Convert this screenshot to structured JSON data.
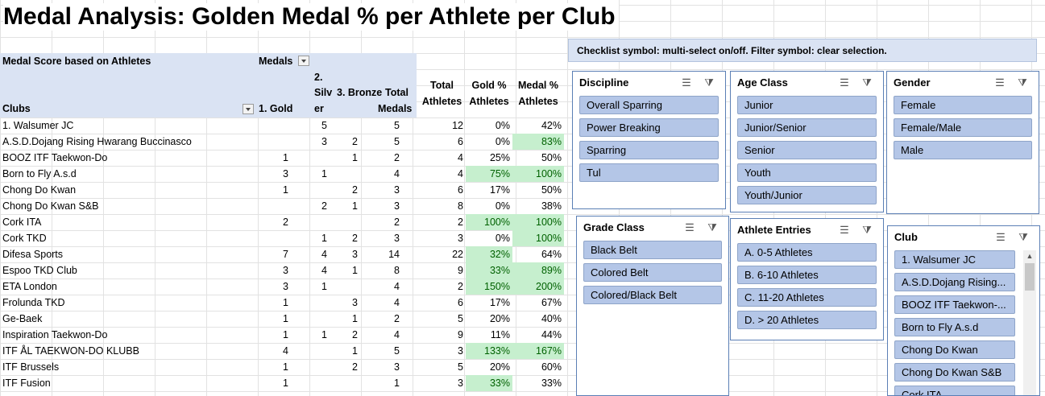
{
  "title": "Medal Analysis: Golden Medal % per Athlete per Club",
  "pivot": {
    "header_title": "Medal Score based on Athletes",
    "medals_label": "Medals",
    "col_clubs": "Clubs",
    "col_gold": "1. Gold",
    "col_silver_1": "2.",
    "col_silver_2": "Silv",
    "col_silver_3": "er",
    "col_bronze": "3. Bronze",
    "col_total_1": "Total",
    "col_total_2": "Medals",
    "rows": [
      {
        "club": "1. Walsumer JC",
        "gold": "",
        "silver": "5",
        "bronze": "",
        "total": "5"
      },
      {
        "club": "A.S.D.Dojang Rising Hwarang Buccinasco",
        "gold": "",
        "silver": "3",
        "bronze": "2",
        "total": "5"
      },
      {
        "club": "BOOZ ITF Taekwon-Do",
        "gold": "1",
        "silver": "",
        "bronze": "1",
        "total": "2"
      },
      {
        "club": "Born to Fly A.s.d",
        "gold": "3",
        "silver": "1",
        "bronze": "",
        "total": "4"
      },
      {
        "club": "Chong Do Kwan",
        "gold": "1",
        "silver": "",
        "bronze": "2",
        "total": "3"
      },
      {
        "club": "Chong Do Kwan S&B",
        "gold": "",
        "silver": "2",
        "bronze": "1",
        "total": "3"
      },
      {
        "club": "Cork ITA",
        "gold": "2",
        "silver": "",
        "bronze": "",
        "total": "2"
      },
      {
        "club": "Cork TKD",
        "gold": "",
        "silver": "1",
        "bronze": "2",
        "total": "3"
      },
      {
        "club": "Difesa Sports",
        "gold": "7",
        "silver": "4",
        "bronze": "3",
        "total": "14"
      },
      {
        "club": "Espoo TKD Club",
        "gold": "3",
        "silver": "4",
        "bronze": "1",
        "total": "8"
      },
      {
        "club": "ETA London",
        "gold": "3",
        "silver": "1",
        "bronze": "",
        "total": "4"
      },
      {
        "club": "Frolunda TKD",
        "gold": "1",
        "silver": "",
        "bronze": "3",
        "total": "4"
      },
      {
        "club": "Ge-Baek",
        "gold": "1",
        "silver": "",
        "bronze": "1",
        "total": "2"
      },
      {
        "club": "Inspiration Taekwon-Do",
        "gold": "1",
        "silver": "1",
        "bronze": "2",
        "total": "4"
      },
      {
        "club": "ITF ÅL TAEKWON-DO KLUBB",
        "gold": "4",
        "silver": "",
        "bronze": "1",
        "total": "5"
      },
      {
        "club": "ITF Brussels",
        "gold": "1",
        "silver": "",
        "bronze": "2",
        "total": "3"
      },
      {
        "club": "ITF Fusion",
        "gold": "1",
        "silver": "",
        "bronze": "",
        "total": "1"
      }
    ]
  },
  "stats": {
    "col_total_1": "Total",
    "col_total_2": "Athletes",
    "col_gold_1": "Gold %",
    "col_gold_2": "Athletes",
    "col_medal_1": "Medal %",
    "col_medal_2": "Athletes",
    "highlight_color": "#c6efce",
    "rows": [
      {
        "athletes": "12",
        "gold_pct": "0%",
        "medal_pct": "42%",
        "gh": false,
        "mh": false
      },
      {
        "athletes": "6",
        "gold_pct": "0%",
        "medal_pct": "83%",
        "gh": false,
        "mh": true
      },
      {
        "athletes": "4",
        "gold_pct": "25%",
        "medal_pct": "50%",
        "gh": false,
        "mh": false
      },
      {
        "athletes": "4",
        "gold_pct": "75%",
        "medal_pct": "100%",
        "gh": true,
        "mh": true
      },
      {
        "athletes": "6",
        "gold_pct": "17%",
        "medal_pct": "50%",
        "gh": false,
        "mh": false
      },
      {
        "athletes": "8",
        "gold_pct": "0%",
        "medal_pct": "38%",
        "gh": false,
        "mh": false
      },
      {
        "athletes": "2",
        "gold_pct": "100%",
        "medal_pct": "100%",
        "gh": true,
        "mh": true
      },
      {
        "athletes": "3",
        "gold_pct": "0%",
        "medal_pct": "100%",
        "gh": false,
        "mh": true
      },
      {
        "athletes": "22",
        "gold_pct": "32%",
        "medal_pct": "64%",
        "gh": true,
        "mh": false
      },
      {
        "athletes": "9",
        "gold_pct": "33%",
        "medal_pct": "89%",
        "gh": true,
        "mh": true
      },
      {
        "athletes": "2",
        "gold_pct": "150%",
        "medal_pct": "200%",
        "gh": true,
        "mh": true
      },
      {
        "athletes": "6",
        "gold_pct": "17%",
        "medal_pct": "67%",
        "gh": false,
        "mh": false
      },
      {
        "athletes": "5",
        "gold_pct": "20%",
        "medal_pct": "40%",
        "gh": false,
        "mh": false
      },
      {
        "athletes": "9",
        "gold_pct": "11%",
        "medal_pct": "44%",
        "gh": false,
        "mh": false
      },
      {
        "athletes": "3",
        "gold_pct": "133%",
        "medal_pct": "167%",
        "gh": true,
        "mh": true
      },
      {
        "athletes": "5",
        "gold_pct": "20%",
        "medal_pct": "60%",
        "gh": false,
        "mh": false
      },
      {
        "athletes": "3",
        "gold_pct": "33%",
        "medal_pct": "33%",
        "gh": true,
        "mh": false
      }
    ]
  },
  "note": "Checklist symbol: multi-select on/off. Filter symbol: clear selection.",
  "slicers": {
    "discipline": {
      "title": "Discipline",
      "items": [
        "Overall Sparring",
        "Power Breaking",
        "Sparring",
        "Tul"
      ]
    },
    "age": {
      "title": "Age Class",
      "items": [
        "Junior",
        "Junior/Senior",
        "Senior",
        "Youth",
        "Youth/Junior"
      ]
    },
    "gender": {
      "title": "Gender",
      "items": [
        "Female",
        "Female/Male",
        "Male"
      ]
    },
    "grade": {
      "title": "Grade Class",
      "items": [
        "Black Belt",
        "Colored Belt",
        "Colored/Black Belt"
      ]
    },
    "entries": {
      "title": "Athlete Entries",
      "items": [
        "A. 0-5 Athletes",
        "B. 6-10 Athletes",
        "C. 11-20 Athletes",
        "D. > 20 Athletes"
      ]
    },
    "club": {
      "title": "Club",
      "items": [
        "1. Walsumer JC",
        "A.S.D.Dojang Rising...",
        "BOOZ ITF Taekwon-...",
        "Born to Fly A.s.d",
        "Chong Do Kwan",
        "Chong Do Kwan S&B",
        "Cork ITA"
      ]
    }
  }
}
